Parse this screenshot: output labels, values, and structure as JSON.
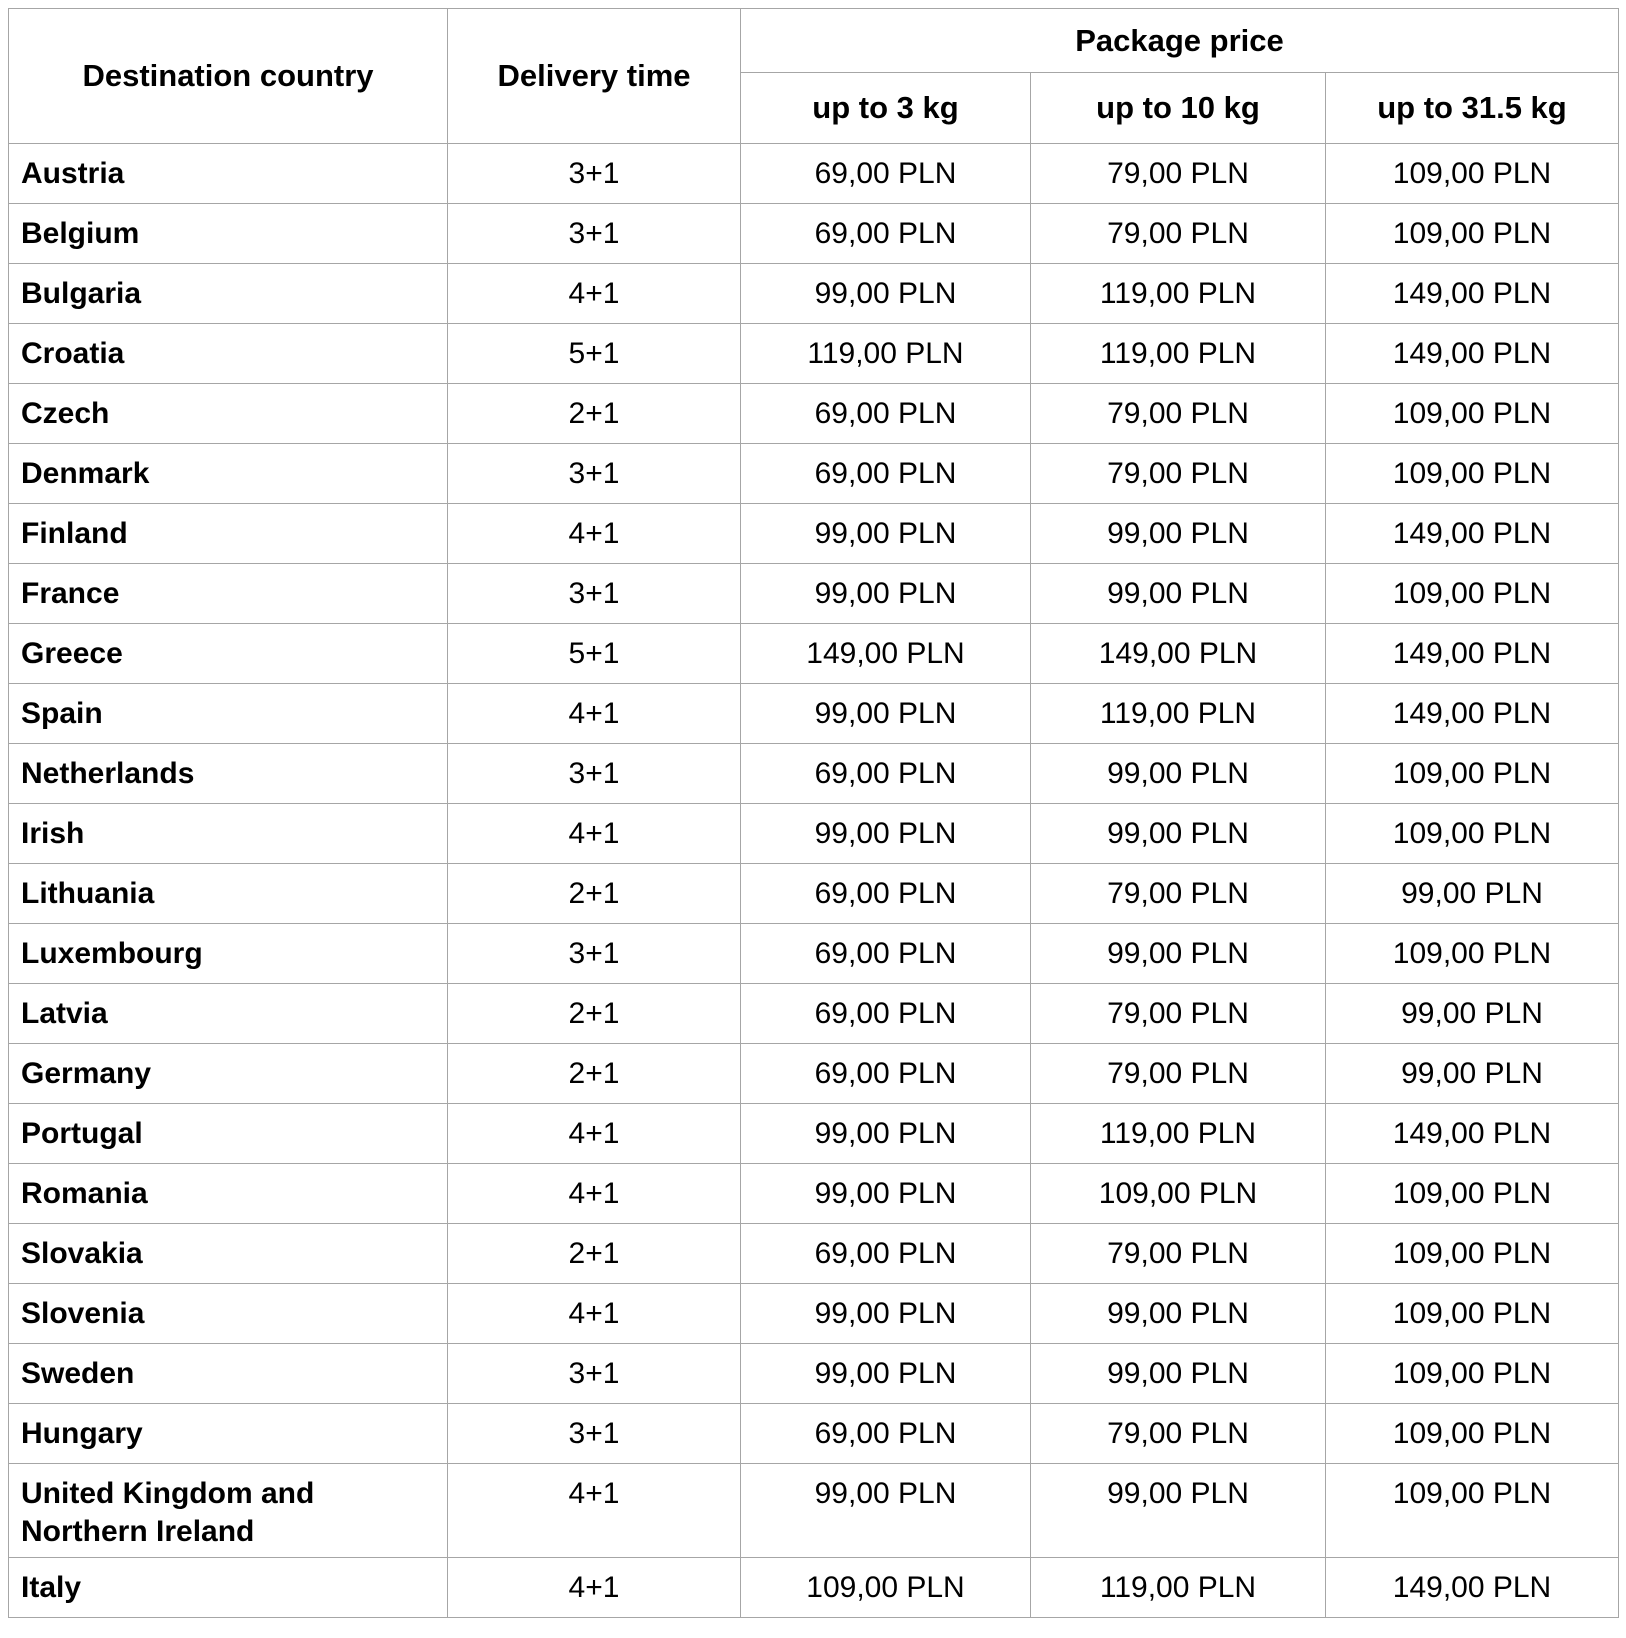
{
  "colors": {
    "border": "#a6a6a6",
    "text": "#000000",
    "background": "#ffffff"
  },
  "table": {
    "columns": {
      "destination": "Destination country",
      "delivery_time": "Delivery time",
      "package_price": "Package price",
      "weights": [
        "up to 3 kg",
        "up to 10 kg",
        "up to 31.5 kg"
      ]
    },
    "rows": [
      {
        "country": "Austria",
        "delivery": "3+1",
        "prices": [
          "69,00 PLN",
          "79,00 PLN",
          "109,00 PLN"
        ]
      },
      {
        "country": "Belgium",
        "delivery": "3+1",
        "prices": [
          "69,00 PLN",
          "79,00 PLN",
          "109,00 PLN"
        ]
      },
      {
        "country": "Bulgaria",
        "delivery": "4+1",
        "prices": [
          "99,00 PLN",
          "119,00 PLN",
          "149,00 PLN"
        ]
      },
      {
        "country": "Croatia",
        "delivery": "5+1",
        "prices": [
          "119,00 PLN",
          "119,00 PLN",
          "149,00 PLN"
        ]
      },
      {
        "country": "Czech",
        "delivery": "2+1",
        "prices": [
          "69,00 PLN",
          "79,00 PLN",
          "109,00 PLN"
        ]
      },
      {
        "country": "Denmark",
        "delivery": "3+1",
        "prices": [
          "69,00 PLN",
          "79,00 PLN",
          "109,00 PLN"
        ]
      },
      {
        "country": "Finland",
        "delivery": "4+1",
        "prices": [
          "99,00 PLN",
          "99,00 PLN",
          "149,00 PLN"
        ]
      },
      {
        "country": "France",
        "delivery": "3+1",
        "prices": [
          "99,00 PLN",
          "99,00 PLN",
          "109,00 PLN"
        ]
      },
      {
        "country": "Greece",
        "delivery": "5+1",
        "prices": [
          "149,00 PLN",
          "149,00 PLN",
          "149,00 PLN"
        ]
      },
      {
        "country": "Spain",
        "delivery": "4+1",
        "prices": [
          "99,00 PLN",
          "119,00 PLN",
          "149,00 PLN"
        ]
      },
      {
        "country": "Netherlands",
        "delivery": "3+1",
        "prices": [
          "69,00 PLN",
          "99,00 PLN",
          "109,00 PLN"
        ]
      },
      {
        "country": "Irish",
        "delivery": "4+1",
        "prices": [
          "99,00 PLN",
          "99,00 PLN",
          "109,00 PLN"
        ]
      },
      {
        "country": "Lithuania",
        "delivery": "2+1",
        "prices": [
          "69,00 PLN",
          "79,00 PLN",
          "99,00 PLN"
        ]
      },
      {
        "country": "Luxembourg",
        "delivery": "3+1",
        "prices": [
          "69,00 PLN",
          "99,00 PLN",
          "109,00 PLN"
        ]
      },
      {
        "country": "Latvia",
        "delivery": "2+1",
        "prices": [
          "69,00 PLN",
          "79,00 PLN",
          "99,00 PLN"
        ]
      },
      {
        "country": "Germany",
        "delivery": "2+1",
        "prices": [
          "69,00 PLN",
          "79,00 PLN",
          "99,00 PLN"
        ]
      },
      {
        "country": "Portugal",
        "delivery": "4+1",
        "prices": [
          "99,00 PLN",
          "119,00 PLN",
          "149,00 PLN"
        ]
      },
      {
        "country": "Romania",
        "delivery": "4+1",
        "prices": [
          "99,00 PLN",
          "109,00 PLN",
          "109,00 PLN"
        ]
      },
      {
        "country": "Slovakia",
        "delivery": "2+1",
        "prices": [
          "69,00 PLN",
          "79,00 PLN",
          "109,00 PLN"
        ]
      },
      {
        "country": "Slovenia",
        "delivery": "4+1",
        "prices": [
          "99,00 PLN",
          "99,00 PLN",
          "109,00 PLN"
        ]
      },
      {
        "country": "Sweden",
        "delivery": "3+1",
        "prices": [
          "99,00 PLN",
          "99,00 PLN",
          "109,00 PLN"
        ]
      },
      {
        "country": "Hungary",
        "delivery": "3+1",
        "prices": [
          "69,00 PLN",
          "79,00 PLN",
          "109,00 PLN"
        ]
      },
      {
        "country": "United Kingdom and Northern Ireland",
        "delivery": "4+1",
        "prices": [
          "99,00 PLN",
          "99,00 PLN",
          "109,00 PLN"
        ]
      },
      {
        "country": "Italy",
        "delivery": "4+1",
        "prices": [
          "109,00 PLN",
          "119,00 PLN",
          "149,00 PLN"
        ]
      }
    ]
  }
}
